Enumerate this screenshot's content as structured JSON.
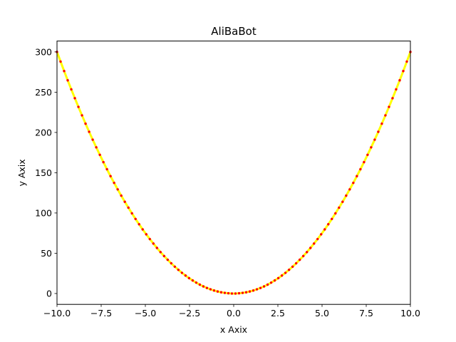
{
  "chart_data": {
    "type": "line",
    "title": "AliBaBot",
    "xlabel": "x Axix",
    "ylabel": "y Axix",
    "xlim": [
      -10,
      10
    ],
    "ylim": [
      -13.5,
      313.5
    ],
    "x_ticks": [
      -10,
      -7.5,
      -5,
      -2.5,
      0,
      2.5,
      5,
      7.5,
      10
    ],
    "x_tick_labels": [
      "−10.0",
      "−7.5",
      "−5.0",
      "−2.5",
      "0.0",
      "2.5",
      "5.0",
      "7.5",
      "10.0"
    ],
    "y_ticks": [
      0,
      50,
      100,
      150,
      200,
      250,
      300
    ],
    "y_tick_labels": [
      "0",
      "50",
      "100",
      "150",
      "200",
      "250",
      "300"
    ],
    "grid": false,
    "series": [
      {
        "function": "y = 3x^2",
        "line_color": "#ffff00",
        "marker_color": "#ff0000",
        "x_range": [
          -10,
          10
        ],
        "num_points": 100,
        "x": [
          -10.0,
          -9.798,
          -9.596,
          -9.394,
          -9.192,
          -8.99,
          -8.788,
          -8.586,
          -8.384,
          -8.182,
          -7.98,
          -7.778,
          -7.576,
          -7.374,
          -7.172,
          -6.97,
          -6.768,
          -6.566,
          -6.364,
          -6.162,
          -5.96,
          -5.758,
          -5.556,
          -5.354,
          -5.152,
          -4.949,
          -4.747,
          -4.545,
          -4.343,
          -4.141,
          -3.939,
          -3.737,
          -3.535,
          -3.333,
          -3.131,
          -2.929,
          -2.727,
          -2.525,
          -2.323,
          -2.121,
          -1.919,
          -1.717,
          -1.515,
          -1.313,
          -1.111,
          -0.909,
          -0.707,
          -0.505,
          -0.303,
          -0.101,
          0.101,
          0.303,
          0.505,
          0.707,
          0.909,
          1.111,
          1.313,
          1.515,
          1.717,
          1.919,
          2.121,
          2.323,
          2.525,
          2.727,
          2.929,
          3.131,
          3.333,
          3.535,
          3.737,
          3.939,
          4.141,
          4.343,
          4.545,
          4.747,
          4.949,
          5.152,
          5.354,
          5.556,
          5.758,
          5.96,
          6.162,
          6.364,
          6.566,
          6.768,
          6.97,
          7.172,
          7.374,
          7.576,
          7.778,
          7.98,
          8.182,
          8.384,
          8.586,
          8.788,
          8.99,
          9.192,
          9.394,
          9.596,
          9.798,
          10.0
        ],
        "y": [
          300.0,
          288.0,
          276.2,
          264.7,
          253.5,
          242.5,
          231.7,
          221.2,
          210.9,
          200.8,
          191.0,
          181.5,
          172.2,
          163.1,
          154.3,
          145.7,
          137.4,
          129.3,
          121.5,
          113.9,
          106.6,
          99.5,
          92.6,
          86.0,
          79.6,
          73.5,
          67.6,
          62.0,
          56.6,
          51.4,
          46.5,
          41.9,
          37.5,
          33.3,
          29.4,
          25.7,
          22.3,
          19.1,
          16.2,
          13.5,
          11.0,
          8.8,
          6.9,
          5.2,
          3.7,
          2.5,
          1.5,
          0.8,
          0.3,
          0.0,
          0.0,
          0.3,
          0.8,
          1.5,
          2.5,
          3.7,
          5.2,
          6.9,
          8.8,
          11.0,
          13.5,
          16.2,
          19.1,
          22.3,
          25.7,
          29.4,
          33.3,
          37.5,
          41.9,
          46.5,
          51.4,
          56.6,
          62.0,
          67.6,
          73.5,
          79.6,
          86.0,
          92.6,
          99.5,
          106.6,
          113.9,
          121.5,
          129.3,
          137.4,
          145.7,
          154.3,
          163.1,
          172.2,
          181.5,
          191.0,
          200.8,
          210.9,
          221.2,
          231.7,
          242.5,
          253.5,
          264.7,
          276.2,
          288.0,
          300.0
        ]
      }
    ]
  }
}
